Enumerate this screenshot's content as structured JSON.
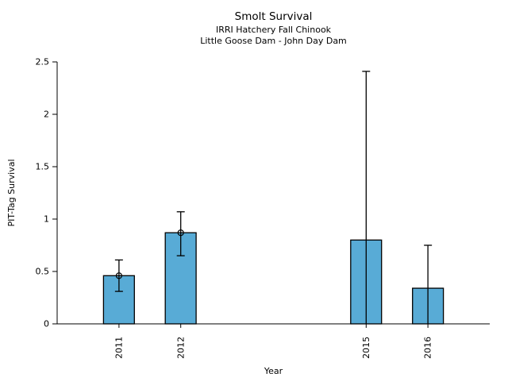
{
  "chart_data": {
    "type": "bar",
    "title": "Smolt Survival",
    "subtitle1": "IRRI Hatchery Fall Chinook",
    "subtitle2": "Little Goose Dam - John Day Dam",
    "xlabel": "Year",
    "ylabel": "PIT-Tag Survival",
    "xlim": [
      2010,
      2017
    ],
    "ylim": [
      0,
      2.5
    ],
    "yticks": [
      0,
      0.5,
      1,
      1.5,
      2,
      2.5
    ],
    "ytick_labels": [
      "0",
      "0.5",
      "1",
      "1.5",
      "2",
      "2.5"
    ],
    "categories": [
      "2011",
      "2012",
      "2015",
      "2016"
    ],
    "values": [
      0.46,
      0.87,
      0.8,
      0.34
    ],
    "points": [
      {
        "year": 2011,
        "label": "2011",
        "value": 0.46,
        "err_low": 0.31,
        "err_high": 0.61,
        "marker": true,
        "cap_low": true
      },
      {
        "year": 2012,
        "label": "2012",
        "value": 0.87,
        "err_low": 0.65,
        "err_high": 1.07,
        "marker": true,
        "cap_low": true
      },
      {
        "year": 2015,
        "label": "2015",
        "value": 0.8,
        "err_low": 0.0,
        "err_high": 2.41,
        "marker": false,
        "cap_low": false
      },
      {
        "year": 2016,
        "label": "2016",
        "value": 0.34,
        "err_low": 0.0,
        "err_high": 0.75,
        "marker": false,
        "cap_low": false
      }
    ],
    "bar_width_years": 0.5,
    "bar_color": "#58ABD6",
    "bar_edge_color": "#000000",
    "error_bar_color": "#000000",
    "marker_style": "open-circle",
    "grid": false,
    "legend": null
  }
}
